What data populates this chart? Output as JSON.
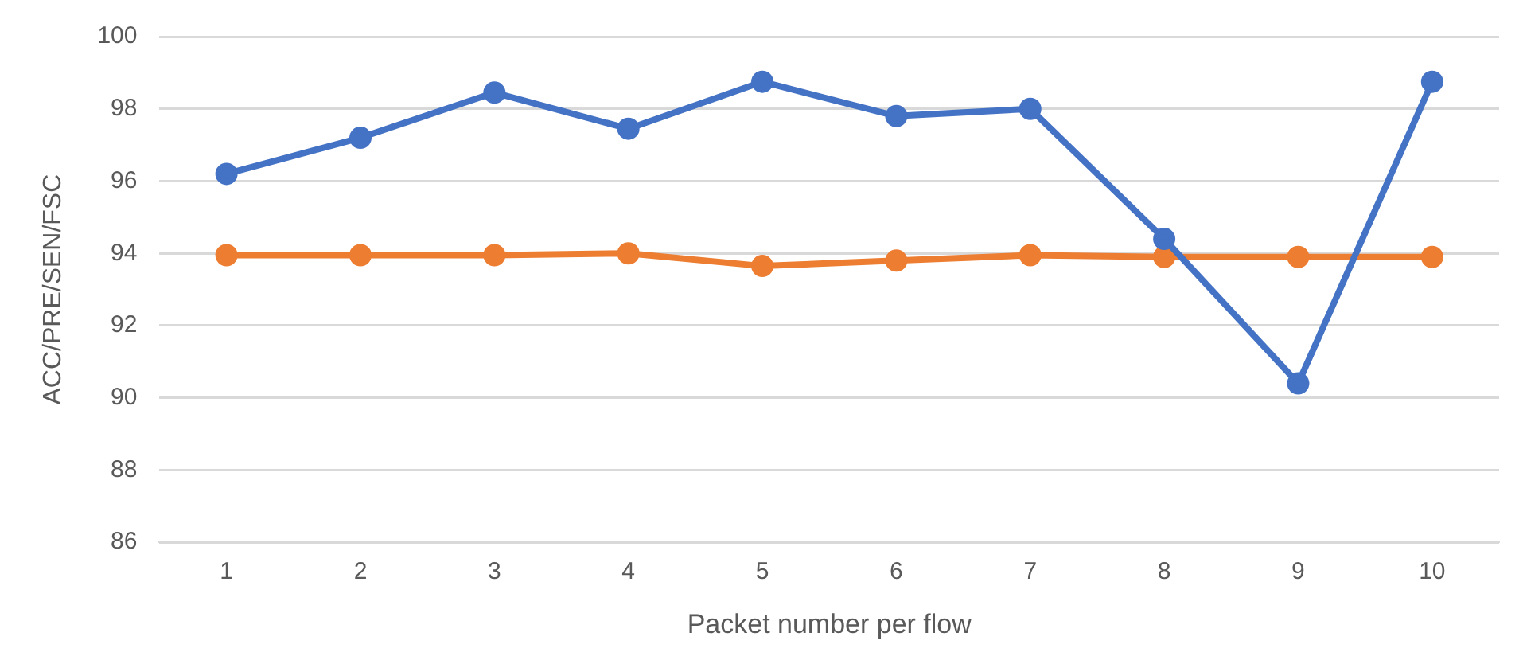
{
  "chart_data": {
    "type": "line",
    "xlabel": "Packet number per flow",
    "ylabel": "ACC/PRE/SEN/FSC",
    "categories": [
      "1",
      "2",
      "3",
      "4",
      "5",
      "6",
      "7",
      "8",
      "9",
      "10"
    ],
    "series": [
      {
        "color": "#4472c4",
        "values": [
          96.2,
          97.2,
          98.45,
          97.45,
          98.75,
          97.8,
          98.0,
          94.4,
          90.4,
          98.75
        ]
      },
      {
        "color": "#ed7d31",
        "values": [
          93.95,
          93.95,
          93.95,
          94.0,
          93.65,
          93.8,
          93.95,
          93.9,
          93.9,
          93.9
        ]
      }
    ],
    "ylim": [
      86,
      100
    ],
    "yticks": [
      86,
      88,
      90,
      92,
      94,
      96,
      98,
      100
    ],
    "grid": "y",
    "legend": false,
    "marker": "circle",
    "line_style": "solid"
  }
}
